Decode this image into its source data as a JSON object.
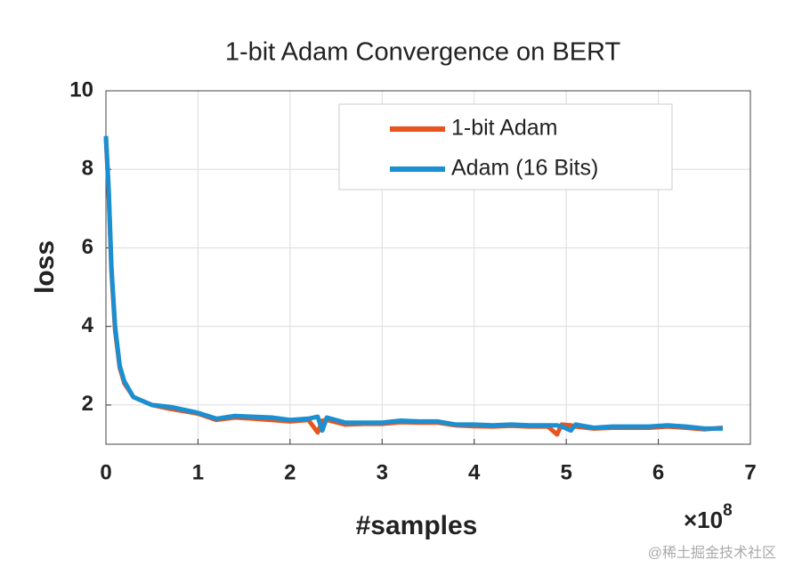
{
  "chart_data": {
    "type": "line",
    "title": "1-bit Adam Convergence on BERT",
    "x_label": "#samples",
    "y_label": "loss",
    "x_scale_label": "×10",
    "x_scale_exponent": "8",
    "watermark": "@稀土掘金技术社区",
    "x": [
      0,
      0.03,
      0.06,
      0.1,
      0.15,
      0.2,
      0.3,
      0.4,
      0.5,
      0.7,
      0.9,
      1.0,
      1.2,
      1.4,
      1.6,
      1.8,
      2.0,
      2.2,
      2.3,
      2.35,
      2.4,
      2.6,
      2.8,
      3.0,
      3.2,
      3.4,
      3.6,
      3.8,
      4.0,
      4.2,
      4.4,
      4.6,
      4.8,
      4.9,
      4.95,
      5.05,
      5.1,
      5.3,
      5.5,
      5.7,
      5.9,
      6.1,
      6.3,
      6.5,
      6.7
    ],
    "series": [
      {
        "name": "1-bit Adam",
        "color": "#e8541e",
        "values": [
          8.8,
          7.4,
          5.4,
          3.9,
          2.95,
          2.55,
          2.2,
          2.1,
          2.0,
          1.9,
          1.82,
          1.78,
          1.62,
          1.68,
          1.65,
          1.62,
          1.58,
          1.62,
          1.3,
          1.6,
          1.62,
          1.5,
          1.52,
          1.52,
          1.56,
          1.55,
          1.55,
          1.48,
          1.46,
          1.45,
          1.47,
          1.45,
          1.45,
          1.25,
          1.5,
          1.48,
          1.45,
          1.4,
          1.42,
          1.42,
          1.42,
          1.45,
          1.42,
          1.38,
          1.42
        ]
      },
      {
        "name": "Adam (16 Bits)",
        "color": "#1a8fd1",
        "values": [
          8.85,
          7.5,
          5.5,
          4.0,
          3.0,
          2.6,
          2.2,
          2.1,
          2.0,
          1.95,
          1.85,
          1.8,
          1.65,
          1.72,
          1.7,
          1.68,
          1.62,
          1.65,
          1.7,
          1.35,
          1.68,
          1.55,
          1.55,
          1.55,
          1.6,
          1.58,
          1.58,
          1.5,
          1.5,
          1.48,
          1.5,
          1.48,
          1.48,
          1.48,
          1.45,
          1.35,
          1.5,
          1.42,
          1.45,
          1.45,
          1.45,
          1.48,
          1.45,
          1.4,
          1.4
        ]
      }
    ],
    "xlim": [
      0,
      7
    ],
    "xticks": [
      0,
      1,
      2,
      3,
      4,
      5,
      6,
      7
    ],
    "ylim": [
      1,
      10
    ],
    "yticks": [
      2,
      4,
      6,
      8,
      10
    ],
    "grid": true,
    "legend": "upper-right"
  }
}
